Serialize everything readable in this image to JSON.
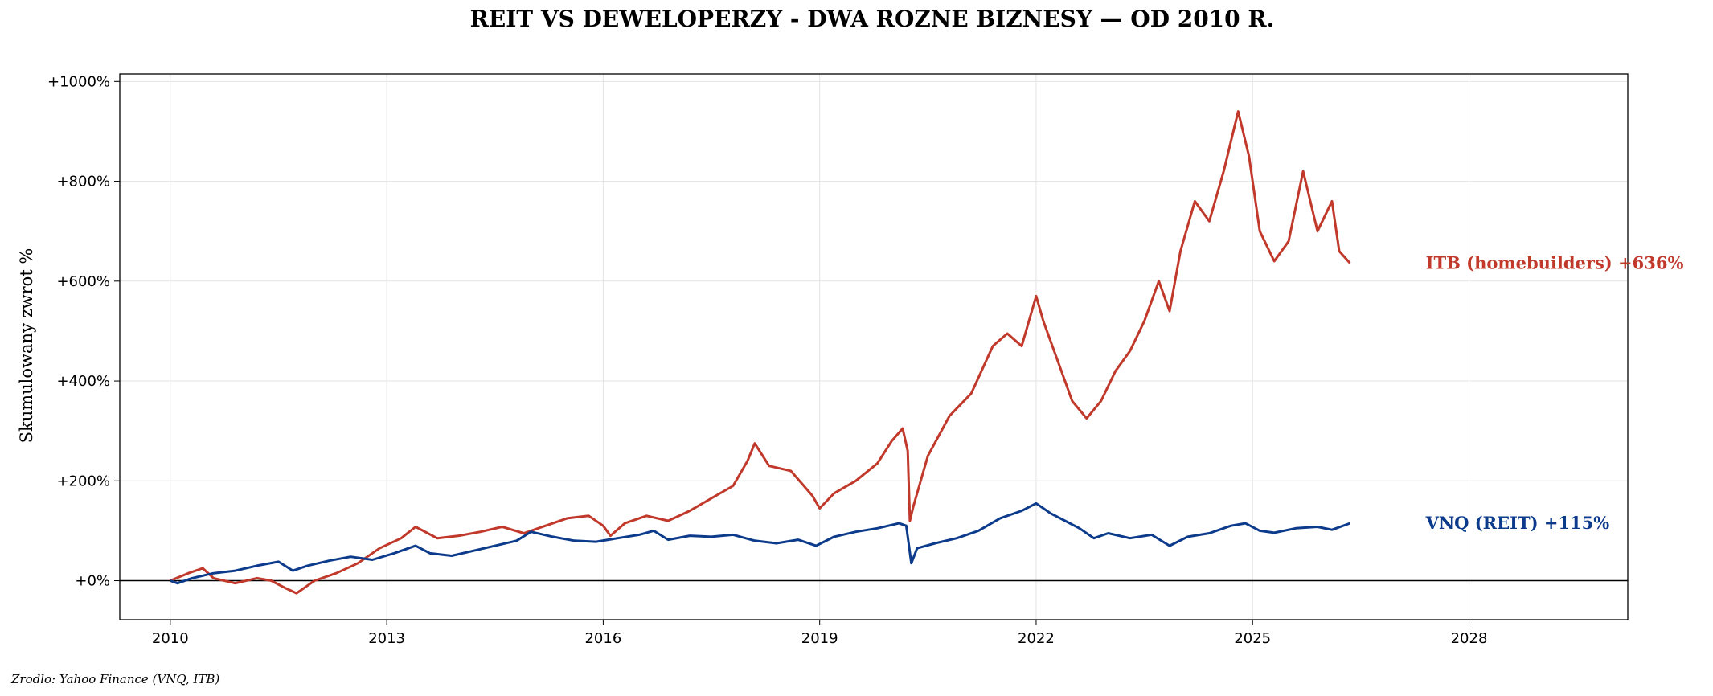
{
  "chart_data": {
    "type": "line",
    "title": "REIT VS DEWELOPERZY - DWA ROZNE BIZNESY — OD 2010 R.",
    "ylabel": "Skumulowany zwrot %",
    "xlabel": "",
    "source": "Zrodlo: Yahoo Finance (VNQ, ITB)",
    "xlim": [
      2009.3,
      2030.2
    ],
    "ylim": [
      -78,
      1015
    ],
    "x_ticks": [
      2010,
      2013,
      2016,
      2019,
      2022,
      2025,
      2028
    ],
    "x_tick_labels": [
      "2010",
      "2013",
      "2016",
      "2019",
      "2022",
      "2025",
      "2028"
    ],
    "y_ticks": [
      0,
      200,
      400,
      600,
      800,
      1000
    ],
    "y_tick_labels": [
      "+0%",
      "+200%",
      "+400%",
      "+600%",
      "+800%",
      "+1000%"
    ],
    "grid": true,
    "zero_line": true,
    "series": [
      {
        "name": "ITB (homebuilders)",
        "end_label": "ITB (homebuilders)  +636%",
        "color": "#c0392b",
        "points": [
          [
            2010.0,
            0
          ],
          [
            2010.25,
            15
          ],
          [
            2010.45,
            25
          ],
          [
            2010.6,
            5
          ],
          [
            2010.9,
            -5
          ],
          [
            2011.2,
            5
          ],
          [
            2011.4,
            0
          ],
          [
            2011.6,
            -15
          ],
          [
            2011.75,
            -25
          ],
          [
            2012.0,
            0
          ],
          [
            2012.3,
            15
          ],
          [
            2012.6,
            35
          ],
          [
            2012.9,
            65
          ],
          [
            2013.2,
            85
          ],
          [
            2013.4,
            108
          ],
          [
            2013.7,
            85
          ],
          [
            2014.0,
            90
          ],
          [
            2014.3,
            98
          ],
          [
            2014.6,
            108
          ],
          [
            2014.9,
            95
          ],
          [
            2015.2,
            110
          ],
          [
            2015.5,
            125
          ],
          [
            2015.8,
            130
          ],
          [
            2016.0,
            110
          ],
          [
            2016.1,
            90
          ],
          [
            2016.3,
            115
          ],
          [
            2016.6,
            130
          ],
          [
            2016.9,
            120
          ],
          [
            2017.2,
            140
          ],
          [
            2017.5,
            165
          ],
          [
            2017.8,
            190
          ],
          [
            2018.0,
            240
          ],
          [
            2018.1,
            275
          ],
          [
            2018.3,
            230
          ],
          [
            2018.6,
            220
          ],
          [
            2018.9,
            170
          ],
          [
            2019.0,
            145
          ],
          [
            2019.2,
            175
          ],
          [
            2019.5,
            200
          ],
          [
            2019.8,
            235
          ],
          [
            2020.0,
            280
          ],
          [
            2020.15,
            305
          ],
          [
            2020.22,
            260
          ],
          [
            2020.25,
            120
          ],
          [
            2020.3,
            150
          ],
          [
            2020.5,
            250
          ],
          [
            2020.8,
            330
          ],
          [
            2021.1,
            375
          ],
          [
            2021.4,
            470
          ],
          [
            2021.6,
            495
          ],
          [
            2021.8,
            470
          ],
          [
            2022.0,
            570
          ],
          [
            2022.1,
            520
          ],
          [
            2022.3,
            440
          ],
          [
            2022.5,
            360
          ],
          [
            2022.7,
            325
          ],
          [
            2022.9,
            360
          ],
          [
            2023.1,
            420
          ],
          [
            2023.3,
            460
          ],
          [
            2023.5,
            520
          ],
          [
            2023.7,
            600
          ],
          [
            2023.85,
            540
          ],
          [
            2024.0,
            660
          ],
          [
            2024.2,
            760
          ],
          [
            2024.4,
            720
          ],
          [
            2024.6,
            820
          ],
          [
            2024.8,
            940
          ],
          [
            2024.95,
            850
          ],
          [
            2025.1,
            700
          ],
          [
            2025.3,
            640
          ],
          [
            2025.5,
            680
          ],
          [
            2025.7,
            820
          ],
          [
            2025.9,
            700
          ],
          [
            2026.1,
            760
          ],
          [
            2026.2,
            660
          ],
          [
            2026.35,
            636
          ]
        ]
      },
      {
        "name": "VNQ (REIT)",
        "end_label": "VNQ (REIT)  +115%",
        "color": "#0d3b8c",
        "points": [
          [
            2010.0,
            0
          ],
          [
            2010.1,
            -5
          ],
          [
            2010.3,
            5
          ],
          [
            2010.6,
            15
          ],
          [
            2010.9,
            20
          ],
          [
            2011.2,
            30
          ],
          [
            2011.5,
            38
          ],
          [
            2011.7,
            20
          ],
          [
            2011.9,
            30
          ],
          [
            2012.2,
            40
          ],
          [
            2012.5,
            48
          ],
          [
            2012.8,
            42
          ],
          [
            2013.1,
            55
          ],
          [
            2013.4,
            70
          ],
          [
            2013.6,
            55
          ],
          [
            2013.9,
            50
          ],
          [
            2014.2,
            60
          ],
          [
            2014.5,
            70
          ],
          [
            2014.8,
            80
          ],
          [
            2015.0,
            98
          ],
          [
            2015.3,
            88
          ],
          [
            2015.6,
            80
          ],
          [
            2015.9,
            78
          ],
          [
            2016.2,
            85
          ],
          [
            2016.5,
            92
          ],
          [
            2016.7,
            100
          ],
          [
            2016.9,
            82
          ],
          [
            2017.2,
            90
          ],
          [
            2017.5,
            88
          ],
          [
            2017.8,
            92
          ],
          [
            2018.1,
            80
          ],
          [
            2018.4,
            75
          ],
          [
            2018.7,
            82
          ],
          [
            2018.95,
            70
          ],
          [
            2019.2,
            88
          ],
          [
            2019.5,
            98
          ],
          [
            2019.8,
            105
          ],
          [
            2020.1,
            115
          ],
          [
            2020.2,
            110
          ],
          [
            2020.27,
            35
          ],
          [
            2020.35,
            65
          ],
          [
            2020.6,
            75
          ],
          [
            2020.9,
            85
          ],
          [
            2021.2,
            100
          ],
          [
            2021.5,
            125
          ],
          [
            2021.8,
            140
          ],
          [
            2022.0,
            155
          ],
          [
            2022.2,
            135
          ],
          [
            2022.4,
            120
          ],
          [
            2022.6,
            105
          ],
          [
            2022.8,
            85
          ],
          [
            2023.0,
            95
          ],
          [
            2023.3,
            85
          ],
          [
            2023.6,
            92
          ],
          [
            2023.85,
            70
          ],
          [
            2024.1,
            88
          ],
          [
            2024.4,
            95
          ],
          [
            2024.7,
            110
          ],
          [
            2024.9,
            115
          ],
          [
            2025.1,
            100
          ],
          [
            2025.3,
            96
          ],
          [
            2025.6,
            105
          ],
          [
            2025.9,
            108
          ],
          [
            2026.1,
            102
          ],
          [
            2026.35,
            115
          ]
        ]
      }
    ]
  }
}
